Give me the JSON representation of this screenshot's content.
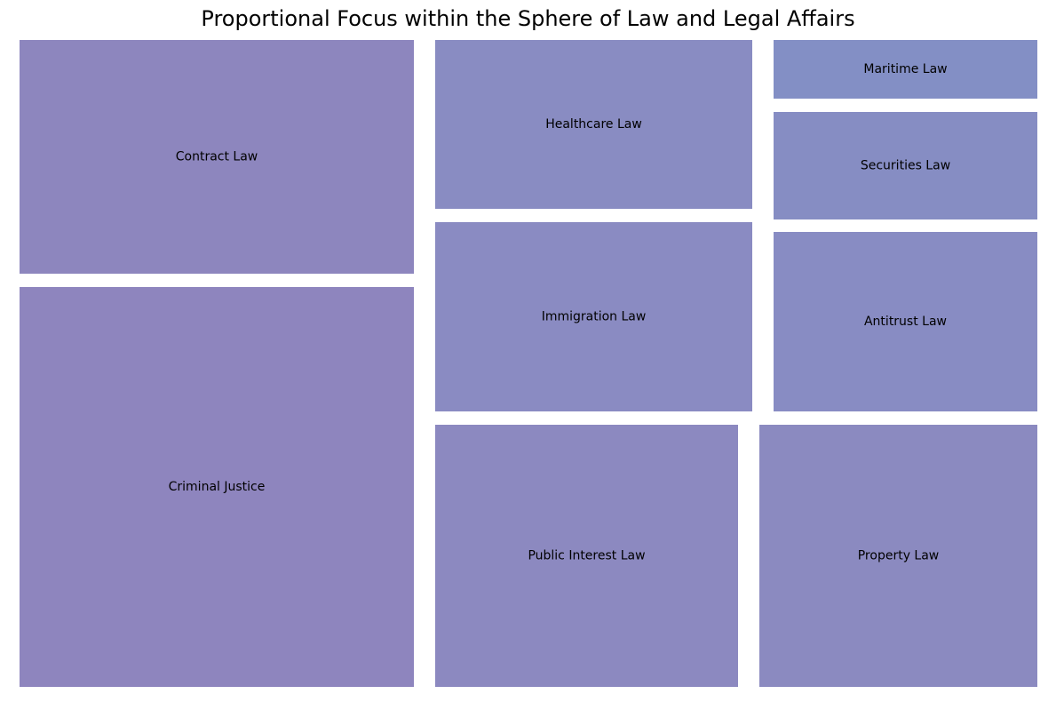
{
  "chart_data": {
    "type": "treemap",
    "title": "Proportional Focus within the Sphere of Law and Legal Affairs",
    "items": [
      {
        "label": "Criminal Justice",
        "value": 20,
        "color": "#8e85be"
      },
      {
        "label": "Contract Law",
        "value": 11.7,
        "color": "#8d86be"
      },
      {
        "label": "Public Interest Law",
        "value": 10,
        "color": "#8c89c0"
      },
      {
        "label": "Property Law",
        "value": 9.2,
        "color": "#8b8ac0"
      },
      {
        "label": "Immigration Law",
        "value": 7.6,
        "color": "#8a8bc2"
      },
      {
        "label": "Healthcare Law",
        "value": 6.8,
        "color": "#898cc2"
      },
      {
        "label": "Antitrust Law",
        "value": 6,
        "color": "#888cc3"
      },
      {
        "label": "Securities Law",
        "value": 3.6,
        "color": "#868dc3"
      },
      {
        "label": "Maritime Law",
        "value": 2,
        "color": "#838fc5"
      }
    ]
  }
}
